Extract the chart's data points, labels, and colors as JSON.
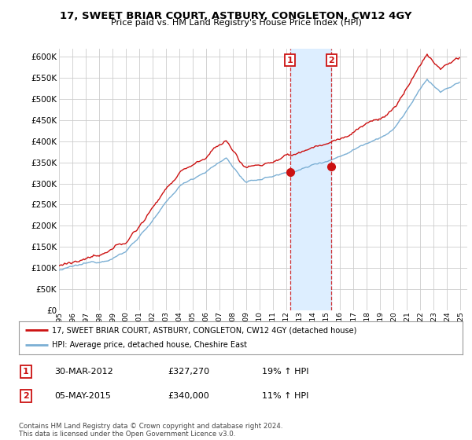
{
  "title": "17, SWEET BRIAR COURT, ASTBURY, CONGLETON, CW12 4GY",
  "subtitle": "Price paid vs. HM Land Registry's House Price Index (HPI)",
  "ylim": [
    0,
    620000
  ],
  "yticks": [
    0,
    50000,
    100000,
    150000,
    200000,
    250000,
    300000,
    350000,
    400000,
    450000,
    500000,
    550000,
    600000
  ],
  "hpi_color": "#7bafd4",
  "price_color": "#cc1111",
  "marker1_year": 2012.25,
  "marker1_value": 327270,
  "marker2_year": 2015.35,
  "marker2_value": 340000,
  "shade_color": "#ddeeff",
  "legend_line1": "17, SWEET BRIAR COURT, ASTBURY, CONGLETON, CW12 4GY (detached house)",
  "legend_line2": "HPI: Average price, detached house, Cheshire East",
  "table_row1": [
    "1",
    "30-MAR-2012",
    "£327,270",
    "19% ↑ HPI"
  ],
  "table_row2": [
    "2",
    "05-MAY-2015",
    "£340,000",
    "11% ↑ HPI"
  ],
  "footnote": "Contains HM Land Registry data © Crown copyright and database right 2024.\nThis data is licensed under the Open Government Licence v3.0.",
  "bg_color": "#ffffff",
  "grid_color": "#cccccc"
}
